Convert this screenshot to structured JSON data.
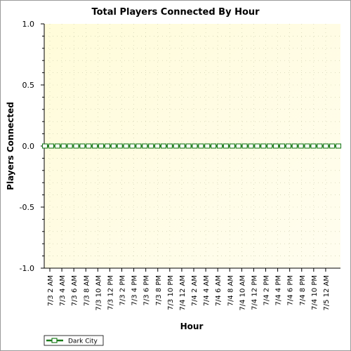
{
  "chart_data": {
    "type": "line",
    "title": "Total Players Connected By Hour",
    "xlabel": "Hour",
    "ylabel": "Players Connected",
    "ylim": [
      -1.0,
      1.0
    ],
    "yticks": [
      "1.0",
      "0.5",
      "0.0",
      "-0.5",
      "-1.0"
    ],
    "ytick_values": [
      1.0,
      0.5,
      0.0,
      -0.5,
      -1.0
    ],
    "grid": true,
    "legend_position": "bottom-left",
    "x_labels": [
      "7/3 2 AM",
      "7/3 4 AM",
      "7/3 6 AM",
      "7/3 8 AM",
      "7/3 10 AM",
      "7/3 12 PM",
      "7/3 2 PM",
      "7/3 4 PM",
      "7/3 6 PM",
      "7/3 8 PM",
      "7/3 10 PM",
      "7/4 12 AM",
      "7/4 2 AM",
      "7/4 4 AM",
      "7/4 6 AM",
      "7/4 8 AM",
      "7/4 10 AM",
      "7/4 12 PM",
      "7/4 2 PM",
      "7/4 4 PM",
      "7/4 6 PM",
      "7/4 8 PM",
      "7/4 10 PM",
      "7/5 12 AM"
    ],
    "series": [
      {
        "name": "Dark City",
        "color": "#1a7a1a",
        "values": [
          0,
          0,
          0,
          0,
          0,
          0,
          0,
          0,
          0,
          0,
          0,
          0,
          0,
          0,
          0,
          0,
          0,
          0,
          0,
          0,
          0,
          0,
          0,
          0,
          0,
          0,
          0,
          0,
          0,
          0,
          0,
          0,
          0,
          0,
          0,
          0,
          0,
          0,
          0,
          0,
          0,
          0,
          0,
          0,
          0,
          0,
          0,
          0
        ]
      }
    ]
  }
}
